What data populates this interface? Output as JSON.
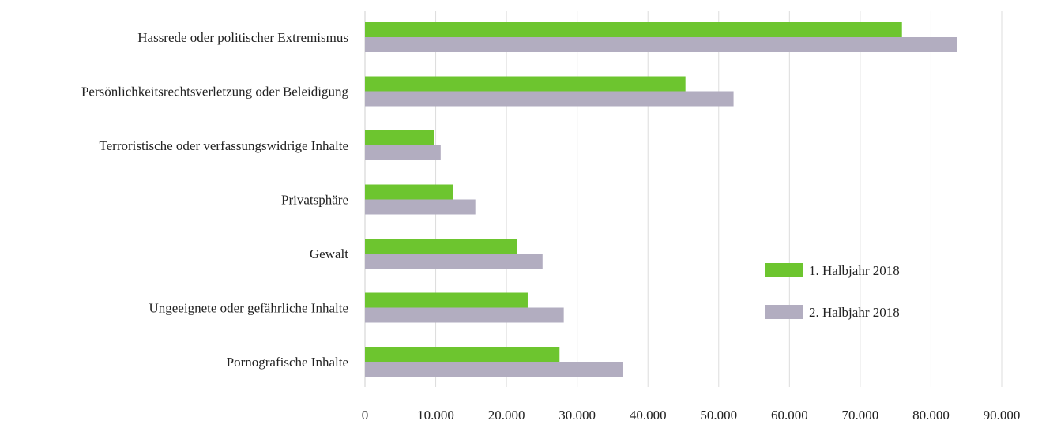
{
  "chart_data": {
    "type": "bar",
    "orientation": "horizontal",
    "categories": [
      "Hassrede oder politischer Extremismus",
      "Persönlichkeitsrechtsverletzung oder Beleidigung",
      "Terroristische oder verfassungswidrige Inhalte",
      "Privatsphäre",
      "Gewalt",
      "Ungeeignete oder gefährliche Inhalte",
      "Pornografische Inhalte"
    ],
    "series": [
      {
        "name": "1. Halbjahr 2018",
        "color": "#6dc52f",
        "values": [
          75900,
          45300,
          9800,
          12500,
          21500,
          23000,
          27500
        ]
      },
      {
        "name": "2. Halbjahr 2018",
        "color": "#b2adc0",
        "values": [
          83700,
          52100,
          10700,
          15600,
          25100,
          28100,
          36400
        ]
      }
    ],
    "xlim": [
      0,
      90000
    ],
    "xticks": [
      "0",
      "10.000",
      "20.000",
      "30.000",
      "40.000",
      "50.000",
      "60.000",
      "70.000",
      "80.000",
      "90.000"
    ],
    "grid": "vertical",
    "legend_position": "right"
  }
}
